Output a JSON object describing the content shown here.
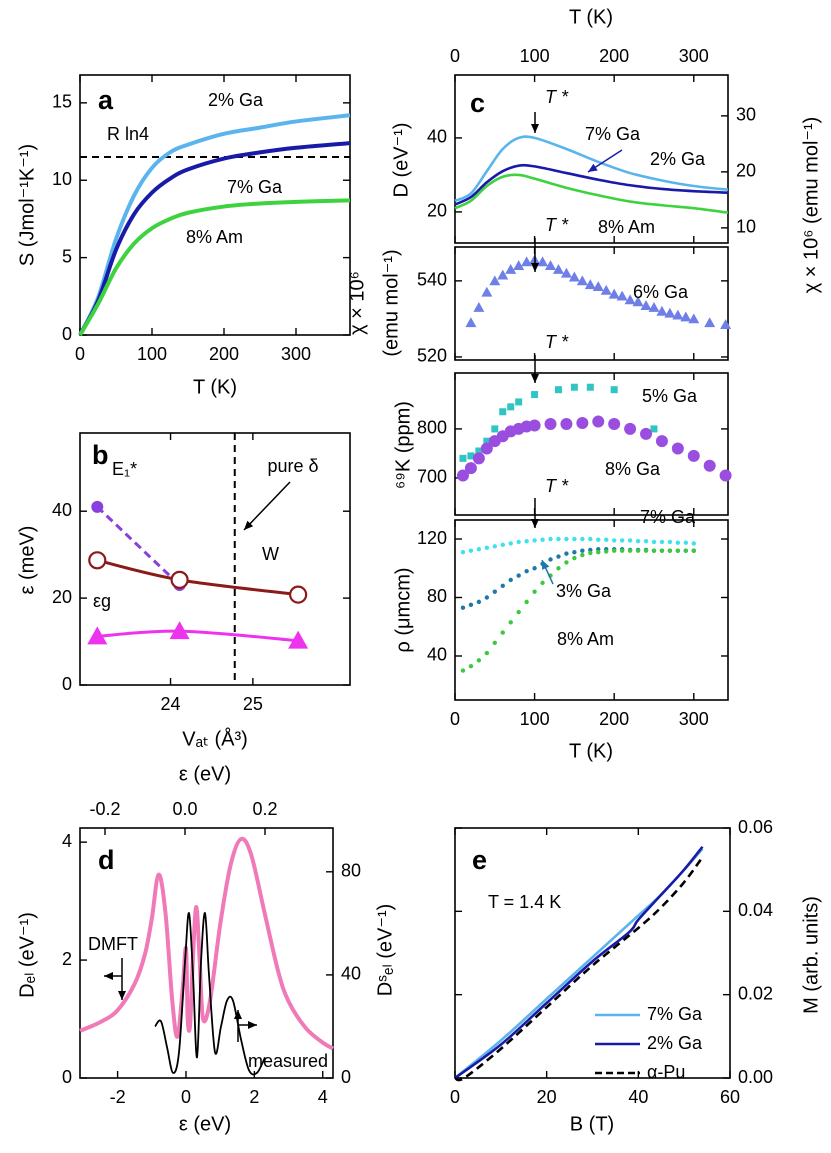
{
  "chart_data": [
    {
      "type": "line",
      "panel": "a",
      "xlabel": "T (K)",
      "ylabel": "S (Jmol⁻¹K⁻¹)",
      "xlim": [
        0,
        375
      ],
      "xticks": [
        0,
        100,
        200,
        300
      ],
      "ylim": [
        0,
        16.8
      ],
      "yticks": [
        0,
        5,
        10,
        15
      ],
      "hline": 11.5,
      "hline_label": "R ln4",
      "series": [
        {
          "name": "2% Ga",
          "color": "#5ab4ee",
          "style": "line",
          "x": [
            0,
            25,
            50,
            75,
            100,
            125,
            150,
            200,
            250,
            300,
            375
          ],
          "values": [
            0,
            2.4,
            6.2,
            9.0,
            10.8,
            11.8,
            12.3,
            13.0,
            13.4,
            13.8,
            14.2
          ]
        },
        {
          "name": "7% Ga",
          "color": "#1a1aa8",
          "style": "line",
          "x": [
            0,
            25,
            50,
            75,
            100,
            125,
            150,
            200,
            250,
            300,
            375
          ],
          "values": [
            0,
            2.2,
            5.5,
            7.8,
            9.2,
            10.1,
            10.7,
            11.4,
            11.8,
            12.1,
            12.4
          ]
        },
        {
          "name": "8% Am",
          "color": "#3ed23e",
          "style": "line",
          "x": [
            0,
            25,
            50,
            75,
            100,
            125,
            150,
            200,
            250,
            300,
            375
          ],
          "values": [
            0,
            2.0,
            4.3,
            5.9,
            6.9,
            7.5,
            7.9,
            8.3,
            8.5,
            8.6,
            8.7
          ]
        }
      ]
    },
    {
      "type": "line",
      "panel": "b",
      "xlabel": "Vₐₜ (Å³)",
      "ylabel": "ε (meV)",
      "xlim": [
        22.9,
        26.18
      ],
      "xticks": [
        24,
        25
      ],
      "ylim": [
        0,
        58
      ],
      "yticks": [
        0,
        20,
        40
      ],
      "vline": 24.78,
      "vline_label": "pure δ",
      "series": [
        {
          "name": "E₁*",
          "color": "#8a3fdc",
          "style": "dashed",
          "marker": "circle",
          "x": [
            23.11,
            24.11
          ],
          "values": [
            41,
            23
          ]
        },
        {
          "name": "W",
          "color": "#8b1a1a",
          "style": "line",
          "marker": "open-circle",
          "x": [
            23.11,
            24.11,
            25.55
          ],
          "values": [
            28.7,
            24.2,
            20.8
          ]
        },
        {
          "name": "εg",
          "color": "#ee33ee",
          "style": "line",
          "marker": "triangle",
          "x": [
            23.11,
            24.11,
            25.55
          ],
          "values": [
            11.2,
            12.4,
            10.2
          ]
        }
      ]
    },
    {
      "type": "line",
      "panel": "c",
      "ylabel": "D (eV⁻¹)",
      "y2label": "χ × 10⁶ (emu mol⁻¹)",
      "x2label": "T (K)",
      "xlim": [
        0,
        343
      ],
      "xticks": [
        0,
        100,
        200,
        300
      ],
      "xtick_labels": false,
      "x2lim": [
        0,
        343
      ],
      "x2ticks": [
        0,
        100,
        200,
        300
      ],
      "ylim": [
        11.6,
        57
      ],
      "yticks": [
        20,
        40
      ],
      "y2lim": [
        7.3,
        37.3
      ],
      "y2ticks": [
        10,
        20,
        30
      ],
      "annotations": [
        "T *"
      ],
      "series": [
        {
          "name": "7% Ga",
          "color": "#1a1aa8",
          "style": "line",
          "x": [
            0,
            20,
            40,
            60,
            80,
            100,
            140,
            180,
            220,
            260,
            300,
            343
          ],
          "values": [
            22,
            24,
            28,
            31,
            32.5,
            32.3,
            30.5,
            28.7,
            27.2,
            26.2,
            25.6,
            25.2
          ]
        },
        {
          "name": "2% Ga",
          "color": "#5ab4ee",
          "style": "line",
          "x": [
            0,
            20,
            40,
            60,
            80,
            100,
            140,
            180,
            220,
            260,
            300,
            343
          ],
          "values": [
            23,
            25,
            31,
            37,
            40,
            40,
            37,
            33.5,
            30.5,
            28.5,
            27,
            26
          ]
        },
        {
          "name": "8% Am",
          "color": "#3ed23e",
          "style": "line",
          "x": [
            0,
            20,
            40,
            60,
            80,
            100,
            140,
            180,
            220,
            260,
            300,
            343
          ],
          "values": [
            21,
            23,
            27,
            29.5,
            30,
            29,
            26.5,
            24.5,
            22.8,
            21.8,
            21,
            19.8
          ]
        }
      ]
    },
    {
      "type": "scatter",
      "ylabel": [
        "χ × 10⁶",
        "(emu mol⁻¹)"
      ],
      "xlim": [
        0,
        343
      ],
      "xticks": [
        0,
        100,
        200,
        300
      ],
      "xtick_labels": false,
      "ylim": [
        519.2,
        548.9
      ],
      "yticks": [
        520,
        540
      ],
      "annotations": [
        "T *"
      ],
      "series": [
        {
          "name": "6% Ga",
          "color": "#6f7fe8",
          "marker": "triangle",
          "x": [
            20,
            30,
            40,
            50,
            60,
            70,
            80,
            90,
            100,
            110,
            120,
            130,
            140,
            150,
            160,
            170,
            180,
            190,
            200,
            210,
            220,
            230,
            240,
            250,
            260,
            270,
            280,
            290,
            300,
            320,
            340
          ],
          "values": [
            529,
            533,
            537,
            540,
            541.5,
            543,
            544,
            545,
            545.5,
            545,
            544,
            543,
            542,
            541,
            540,
            539,
            538.5,
            537.5,
            536.5,
            536,
            535,
            534.5,
            533.5,
            533,
            532,
            531.5,
            531,
            530.5,
            530,
            529,
            528.5
          ]
        }
      ]
    },
    {
      "type": "scatter",
      "ylabel": "⁶⁹K (ppm)",
      "xlim": [
        0,
        343
      ],
      "xticks": [
        0,
        100,
        200,
        300
      ],
      "xtick_labels": false,
      "ylim": [
        624.5,
        914
      ],
      "yticks": [
        700,
        800
      ],
      "annotations": [
        "T *"
      ],
      "series": [
        {
          "name": "5% Ga",
          "color": "#30c4c4",
          "marker": "square",
          "x": [
            10,
            20,
            30,
            40,
            50,
            60,
            70,
            80,
            100,
            130,
            150,
            170,
            200,
            250,
            300
          ],
          "values": [
            740,
            745,
            755,
            775,
            800,
            835,
            845,
            855,
            870,
            880,
            885,
            885,
            880,
            800,
            745
          ]
        },
        {
          "name": "8% Ga",
          "color": "#9a4ee0",
          "marker": "circle",
          "x": [
            10,
            20,
            30,
            40,
            50,
            60,
            70,
            80,
            90,
            100,
            120,
            140,
            160,
            180,
            200,
            220,
            240,
            260,
            280,
            300,
            320,
            340
          ],
          "values": [
            705,
            720,
            740,
            760,
            775,
            785,
            795,
            800,
            805,
            807,
            810,
            810,
            812,
            815,
            810,
            800,
            790,
            775,
            760,
            745,
            725,
            705
          ]
        }
      ]
    },
    {
      "type": "scatter",
      "xlabel": "T (K)",
      "ylabel": "ρ (μmcm)",
      "xlim": [
        0,
        343
      ],
      "xticks": [
        0,
        100,
        200,
        300
      ],
      "ylim": [
        9.9,
        133
      ],
      "yticks": [
        40,
        80,
        120
      ],
      "annotations": [
        "T *"
      ],
      "series": [
        {
          "name": "7% Ga",
          "color": "#40e0f0",
          "marker": "dot",
          "x": [
            10,
            20,
            30,
            40,
            50,
            60,
            70,
            80,
            90,
            100,
            110,
            120,
            130,
            140,
            150,
            160,
            170,
            180,
            190,
            200,
            210,
            220,
            230,
            240,
            250,
            260,
            270,
            280,
            290,
            300
          ],
          "values": [
            111,
            112,
            113,
            114,
            115,
            116,
            117,
            118,
            118.5,
            119,
            119.5,
            120,
            120,
            120,
            120,
            120,
            120,
            119.5,
            119.5,
            119,
            119,
            119,
            118.5,
            118.5,
            118,
            118,
            118,
            117.5,
            117.5,
            117
          ]
        },
        {
          "name": "3% Ga",
          "color": "#1f78a8",
          "marker": "dot",
          "x": [
            10,
            20,
            30,
            40,
            50,
            60,
            70,
            80,
            90,
            100,
            110,
            120,
            130,
            140,
            150,
            160,
            170,
            180,
            190,
            200,
            210,
            220,
            230,
            240,
            250,
            260,
            270,
            280,
            290,
            300
          ],
          "values": [
            73,
            75,
            77,
            80,
            84,
            88,
            92,
            95,
            98,
            100,
            103,
            106,
            108,
            110,
            111,
            112,
            112.5,
            113,
            113,
            113,
            113,
            112.5,
            112.5,
            112.5,
            112,
            112,
            112,
            112,
            112,
            112
          ]
        },
        {
          "name": "8% Am",
          "color": "#3ec83e",
          "marker": "dot",
          "x": [
            10,
            20,
            30,
            40,
            50,
            60,
            70,
            80,
            90,
            100,
            110,
            120,
            130,
            140,
            150,
            160,
            170,
            180,
            190,
            200,
            210,
            220,
            230,
            240,
            250,
            260,
            270,
            280,
            290,
            300
          ],
          "values": [
            30,
            33,
            37,
            42,
            49,
            56,
            63,
            70,
            77,
            84,
            90,
            95,
            100,
            104,
            107,
            109,
            110.5,
            111,
            111.5,
            112,
            112,
            112,
            112,
            112,
            112,
            112,
            112,
            112,
            112,
            112
          ]
        }
      ]
    },
    {
      "type": "line",
      "panel": "d",
      "xlabel": "ε (eV)",
      "x2label": "ε (eV)",
      "ylabel": "Dₑₗ (eV⁻¹)",
      "y2label": "Dˢₑₗ (eV⁻¹)",
      "xlim": [
        -3.1,
        4.3
      ],
      "xticks": [
        -2,
        0,
        2,
        4
      ],
      "x2lim": [
        -0.2625,
        0.37
      ],
      "x2ticks": [
        -0.2,
        {
          "value": 0,
          "label": "0.0"
        },
        0.2
      ],
      "ylim": [
        0,
        4.24
      ],
      "yticks": [
        0,
        2,
        4
      ],
      "y2lim": [
        0,
        97
      ],
      "y2ticks": [
        0,
        40,
        80
      ],
      "series": [
        {
          "name": "DMFT",
          "color": "#f07ab8",
          "style": "line",
          "x": [
            -3.1,
            -2.5,
            -2,
            -1.5,
            -1.2,
            -1.0,
            -0.8,
            -0.6,
            -0.4,
            -0.25,
            -0.1,
            0,
            0.05,
            0.12,
            0.2,
            0.3,
            0.4,
            0.5,
            0.7,
            1.0,
            1.3,
            1.6,
            1.9,
            2.3,
            2.7,
            3.0,
            3.5,
            4.0,
            4.3
          ],
          "values": [
            0.8,
            0.95,
            1.15,
            1.6,
            2.1,
            2.7,
            3.45,
            2.8,
            1.3,
            0.7,
            1.5,
            2.2,
            1.0,
            0.9,
            2.0,
            2.9,
            2.0,
            1.0,
            1.3,
            2.6,
            3.6,
            4.05,
            3.8,
            2.8,
            1.8,
            1.3,
            0.85,
            0.6,
            0.5
          ]
        },
        {
          "name": "measured",
          "color": "#000000",
          "style": "line",
          "xaxis": "x2",
          "axis": "y2",
          "x": [
            -0.075,
            -0.06,
            -0.045,
            -0.03,
            -0.015,
            0,
            0.01,
            0.02,
            0.03,
            0.04,
            0.05,
            0.06,
            0.075,
            0.09,
            0.105,
            0.12,
            0.14,
            0.16,
            0.18,
            0.2
          ],
          "values": [
            20,
            22,
            12,
            2,
            10,
            45,
            64,
            40,
            8,
            45,
            64,
            40,
            10,
            20,
            30,
            30,
            15,
            3,
            2,
            8
          ]
        }
      ]
    },
    {
      "type": "line",
      "panel": "e",
      "xlabel": "B (T)",
      "ylabel": "M (arb. units)",
      "y_side": "right",
      "legend": "lower right",
      "xlim": [
        0,
        60
      ],
      "xticks": [
        0,
        20,
        40,
        60
      ],
      "ylim": [
        0,
        0.06
      ],
      "yticks": [
        {
          "value": 0,
          "label": "0.00"
        },
        {
          "value": 0.02,
          "label": "0.02"
        },
        {
          "value": 0.04,
          "label": "0.04"
        },
        {
          "value": 0.06,
          "label": "0.06"
        }
      ],
      "annotations": [
        "T = 1.4 K"
      ],
      "series": [
        {
          "name": "7% Ga",
          "color": "#5ab4ee",
          "style": "line",
          "x": [
            0,
            10,
            20,
            30,
            40,
            45,
            50,
            54
          ],
          "values": [
            0,
            0.009,
            0.019,
            0.029,
            0.039,
            0.044,
            0.05,
            0.055
          ]
        },
        {
          "name": "2% Ga",
          "color": "#1a1aa8",
          "style": "line",
          "x": [
            0,
            10,
            20,
            30,
            38,
            40,
            45,
            50,
            54
          ],
          "values": [
            0,
            0.008,
            0.018,
            0.028,
            0.035,
            0.038,
            0.044,
            0.05,
            0.0555
          ]
        },
        {
          "name": "α-Pu",
          "color": "#000000",
          "style": "dashed",
          "x": [
            0,
            2,
            10,
            20,
            30,
            40,
            45,
            50,
            54
          ],
          "values": [
            0,
            0,
            0.007,
            0.017,
            0.027,
            0.036,
            0.041,
            0.047,
            0.053
          ]
        }
      ]
    }
  ]
}
